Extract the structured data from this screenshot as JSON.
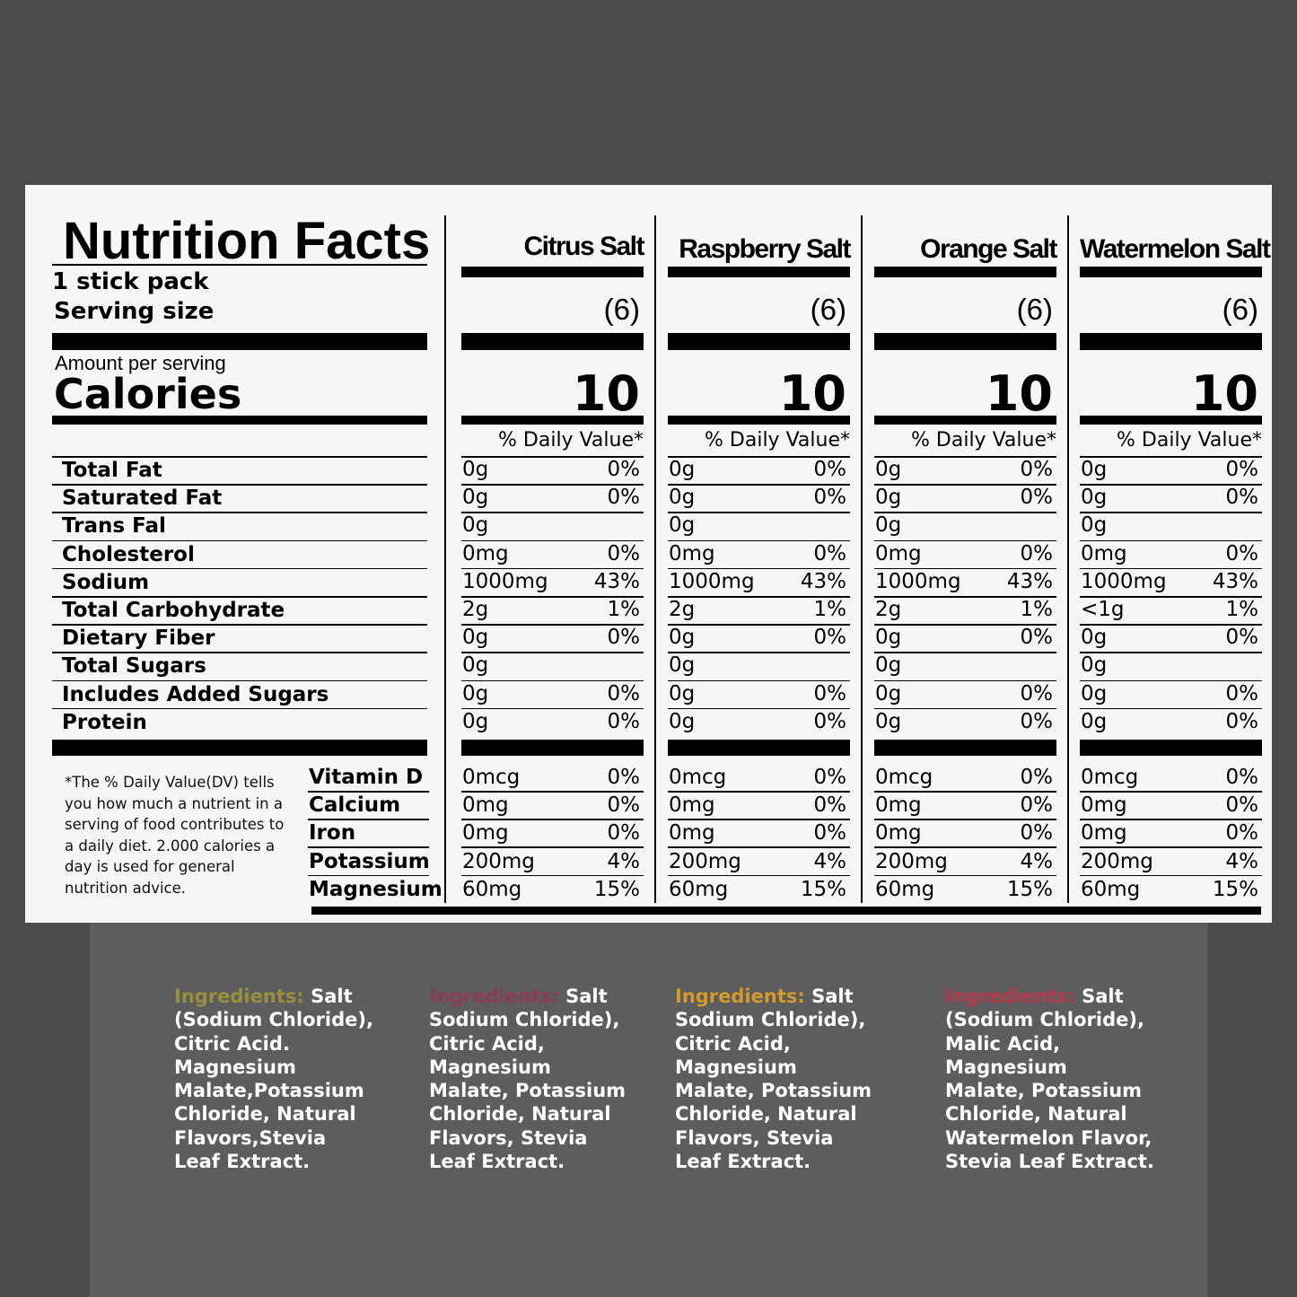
{
  "label": {
    "title": "Nutrition Facts",
    "serving_count": "1 stick pack",
    "serving_size": "Serving size",
    "amount_per_serving": "Amount per serving",
    "calories": "Calories",
    "footnote": "*The % Daily Value(DV) tells you how much a nutrient in a serving of food contributes to a daily diet. 2.000 calories a day is used for general nutrition advice."
  },
  "nutrients": [
    "Total Fat",
    "Saturated Fat",
    "Trans Fal",
    "Cholesterol",
    "Sodium",
    "Total Carbohydrate",
    "Dietary Fiber",
    "Total Sugars",
    "Includes Added Sugars",
    "Protein"
  ],
  "vitamins": [
    "Vitamin D",
    "Calcium",
    "Iron",
    "Potassium",
    "Magnesium"
  ],
  "products": [
    {
      "name": "Citrus Salt",
      "servings": "(6)",
      "calories": "10",
      "dv_header": "% Daily Value*",
      "nutrients": [
        [
          "0g",
          "0%"
        ],
        [
          "0g",
          "0%"
        ],
        [
          "0g",
          ""
        ],
        [
          "0mg",
          "0%"
        ],
        [
          "1000mg",
          "43%"
        ],
        [
          "2g",
          "1%"
        ],
        [
          "0g",
          "0%"
        ],
        [
          "0g",
          ""
        ],
        [
          "0g",
          "0%"
        ],
        [
          "0g",
          "0%"
        ]
      ],
      "vitamins": [
        [
          "0mcg",
          "0%"
        ],
        [
          "0mg",
          "0%"
        ],
        [
          "0mg",
          "0%"
        ],
        [
          "200mg",
          "4%"
        ],
        [
          "60mg",
          "15%"
        ]
      ]
    },
    {
      "name": "Raspberry Salt",
      "servings": "(6)",
      "calories": "10",
      "dv_header": "% Daily Value*",
      "nutrients": [
        [
          "0g",
          "0%"
        ],
        [
          "0g",
          "0%"
        ],
        [
          "0g",
          ""
        ],
        [
          "0mg",
          "0%"
        ],
        [
          "1000mg",
          "43%"
        ],
        [
          "2g",
          "1%"
        ],
        [
          "0g",
          "0%"
        ],
        [
          "0g",
          ""
        ],
        [
          "0g",
          "0%"
        ],
        [
          "0g",
          "0%"
        ]
      ],
      "vitamins": [
        [
          "0mcg",
          "0%"
        ],
        [
          "0mg",
          "0%"
        ],
        [
          "0mg",
          "0%"
        ],
        [
          "200mg",
          "4%"
        ],
        [
          "60mg",
          "15%"
        ]
      ]
    },
    {
      "name": "Orange Salt",
      "servings": "(6)",
      "calories": "10",
      "dv_header": "% Daily Value*",
      "nutrients": [
        [
          "0g",
          "0%"
        ],
        [
          "0g",
          "0%"
        ],
        [
          "0g",
          ""
        ],
        [
          "0mg",
          "0%"
        ],
        [
          "1000mg",
          "43%"
        ],
        [
          "2g",
          "1%"
        ],
        [
          "0g",
          "0%"
        ],
        [
          "0g",
          ""
        ],
        [
          "0g",
          "0%"
        ],
        [
          "0g",
          "0%"
        ]
      ],
      "vitamins": [
        [
          "0mcg",
          "0%"
        ],
        [
          "0mg",
          "0%"
        ],
        [
          "0mg",
          "0%"
        ],
        [
          "200mg",
          "4%"
        ],
        [
          "60mg",
          "15%"
        ]
      ]
    },
    {
      "name": "Watermelon Salt",
      "servings": "(6)",
      "calories": "10",
      "dv_header": "% Daily Value*",
      "nutrients": [
        [
          "0g",
          "0%"
        ],
        [
          "0g",
          "0%"
        ],
        [
          "0g",
          ""
        ],
        [
          "0mg",
          "0%"
        ],
        [
          "1000mg",
          "43%"
        ],
        [
          "<1g",
          "1%"
        ],
        [
          "0g",
          "0%"
        ],
        [
          "0g",
          ""
        ],
        [
          "0g",
          "0%"
        ],
        [
          "0g",
          "0%"
        ]
      ],
      "vitamins": [
        [
          "0mcg",
          "0%"
        ],
        [
          "0mg",
          "0%"
        ],
        [
          "0mg",
          "0%"
        ],
        [
          "200mg",
          "4%"
        ],
        [
          "60mg",
          "15%"
        ]
      ]
    }
  ],
  "ingredients": [
    {
      "label": "Ingredients:",
      "label_color": "#9a8f3c",
      "text": " Salt\n(Sodium Chloride),\nCitric Acid.\nMagnesium\nMalate,Potassium\nChloride, Natural\nFlavors,Stevia\nLeaf Extract."
    },
    {
      "label": "Ingredients:",
      "label_color": "#8c3a56",
      "text": " Salt\nSodium Chloride),\nCitric Acid,\nMagnesium\nMalate, Potassium\nChloride, Natural\nFlavors, Stevia\nLeaf Extract."
    },
    {
      "label": "Ingredients:",
      "label_color": "#d49a2c",
      "text": " Salt\nSodium Chloride),\nCitric Acid,\nMagnesium\nMalate, Potassium\nChloride, Natural\nFlavors, Stevia\nLeaf Extract."
    },
    {
      "label": "Ingredients:",
      "label_color": "#b83a4a",
      "text": " Salt\n(Sodium Chloride),\nMalic Acid,\nMagnesium\nMalate, Potassium\nChloride, Natural\nWatermelon Flavor,\nStevia Leaf Extract."
    }
  ]
}
